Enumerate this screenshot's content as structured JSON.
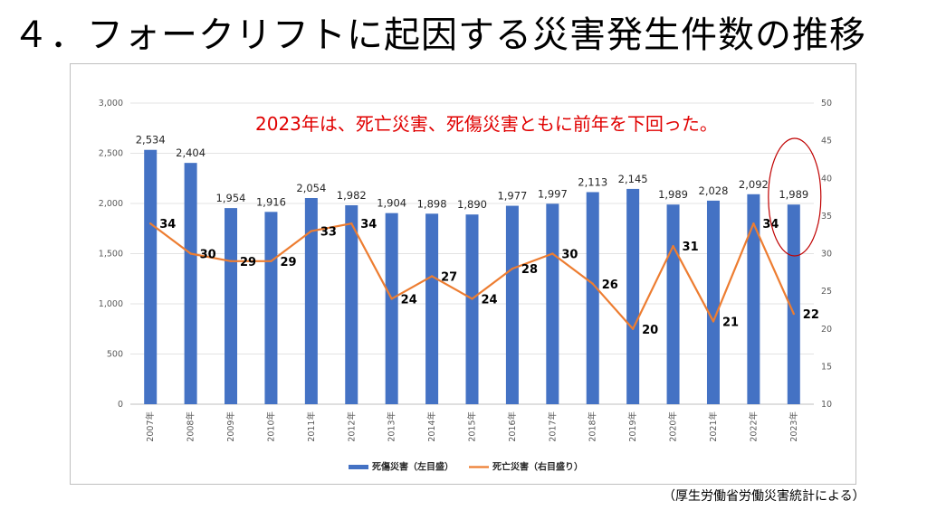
{
  "title": "４．フォークリフトに起因する災害発生件数の推移",
  "source_note": "（厚生労働省労働災害統計による）",
  "colors": {
    "bar": "#4472c4",
    "line": "#ed7d31",
    "annotation": "#e00000",
    "highlight_circle": "#c00000"
  },
  "chart_data": {
    "type": "bar+line",
    "title": "",
    "annotation": "2023年は、死亡災害、死傷災害ともに前年を下回った。",
    "categories": [
      "2007年",
      "2008年",
      "2009年",
      "2010年",
      "2011年",
      "2012年",
      "2013年",
      "2014年",
      "2015年",
      "2016年",
      "2017年",
      "2018年",
      "2019年",
      "2020年",
      "2021年",
      "2022年",
      "2023年"
    ],
    "series": [
      {
        "name": "死傷災害（左目盛）",
        "type": "bar",
        "axis": "left",
        "values": [
          2534,
          2404,
          1954,
          1916,
          2054,
          1982,
          1904,
          1898,
          1890,
          1977,
          1997,
          2113,
          2145,
          1989,
          2028,
          2092,
          1989
        ],
        "labels": [
          "2,534",
          "2,404",
          "1,954",
          "1,916",
          "2,054",
          "1,982",
          "1,904",
          "1,898",
          "1,890",
          "1,977",
          "1,997",
          "2,113",
          "2,145",
          "1,989",
          "2,028",
          "2,092",
          "1,989"
        ]
      },
      {
        "name": "死亡災害（右目盛り）",
        "type": "line",
        "axis": "right",
        "values": [
          34,
          30,
          29,
          29,
          33,
          34,
          24,
          27,
          24,
          28,
          30,
          26,
          20,
          31,
          21,
          34,
          22
        ],
        "labels": [
          "34",
          "30",
          "29",
          "29",
          "33",
          "34",
          "24",
          "27",
          "24",
          "28",
          "30",
          "26",
          "20",
          "31",
          "21",
          "34",
          "22"
        ]
      }
    ],
    "y_left": {
      "min": 0,
      "max": 3000,
      "ticks": [
        "0",
        "500",
        "1,000",
        "1,500",
        "2,000",
        "2,500",
        "3,000"
      ]
    },
    "y_right": {
      "min": 10,
      "max": 50,
      "ticks": [
        "10",
        "15",
        "20",
        "25",
        "30",
        "35",
        "40",
        "45",
        "50"
      ]
    },
    "grid": true,
    "legend_position": "bottom",
    "highlight": "2023年"
  }
}
